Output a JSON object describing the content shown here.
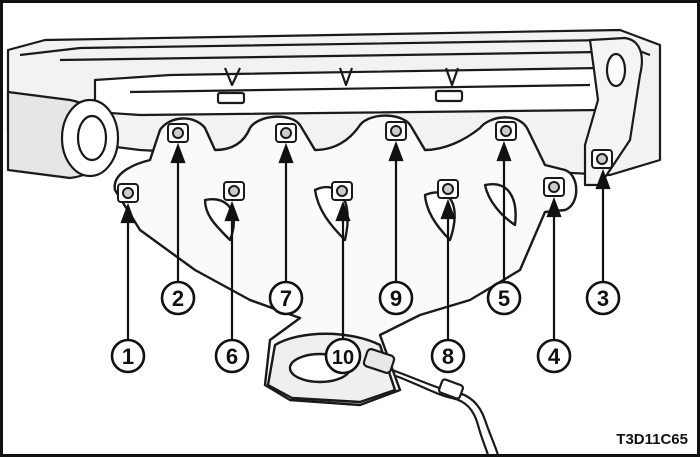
{
  "figure": {
    "code": "T3D11C65",
    "subject": "exhaust manifold nut tightening sequence"
  },
  "callouts": [
    {
      "number": "1"
    },
    {
      "number": "2"
    },
    {
      "number": "3"
    },
    {
      "number": "4"
    },
    {
      "number": "5"
    },
    {
      "number": "6"
    },
    {
      "number": "7"
    },
    {
      "number": "8"
    },
    {
      "number": "9"
    },
    {
      "number": "10"
    }
  ],
  "colors": {
    "line": "#1a1a1a",
    "fill": "#ffffff",
    "shade": "#dcdcdc"
  }
}
